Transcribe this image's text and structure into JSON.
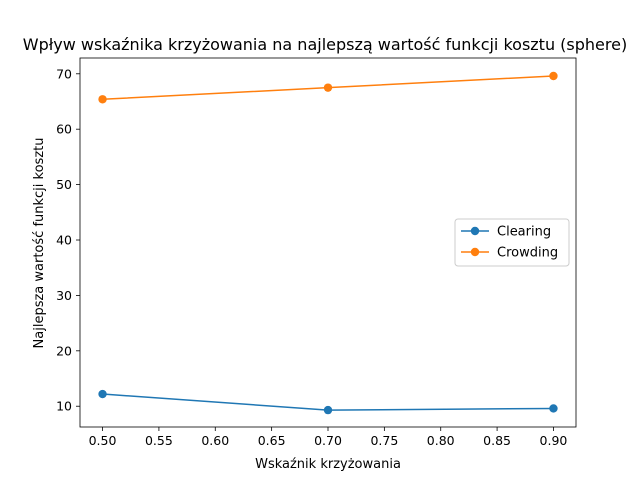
{
  "chart_data": {
    "type": "line",
    "title": "Wpływ wskaźnika krzyżowania na najlepszą wartość funkcji kosztu (sphere)",
    "xlabel": "Wskaźnik krzyżowania",
    "ylabel": "Najlepsza wartość funkcji kosztu",
    "x": [
      0.5,
      0.7,
      0.9
    ],
    "xlim": [
      0.48,
      0.92
    ],
    "ylim": [
      6.25,
      72.85
    ],
    "xticks": [
      "0.50",
      "0.55",
      "0.60",
      "0.65",
      "0.70",
      "0.75",
      "0.80",
      "0.85",
      "0.90"
    ],
    "yticks": [
      "10",
      "20",
      "30",
      "40",
      "50",
      "60",
      "70"
    ],
    "grid": false,
    "legend_position": "center-right",
    "series": [
      {
        "name": "Clearing",
        "values": [
          12.2,
          9.3,
          9.6
        ],
        "color": "#1f77b4",
        "marker": "circle"
      },
      {
        "name": "Crowding",
        "values": [
          65.4,
          67.5,
          69.6
        ],
        "color": "#ff7f0e",
        "marker": "circle"
      }
    ]
  }
}
